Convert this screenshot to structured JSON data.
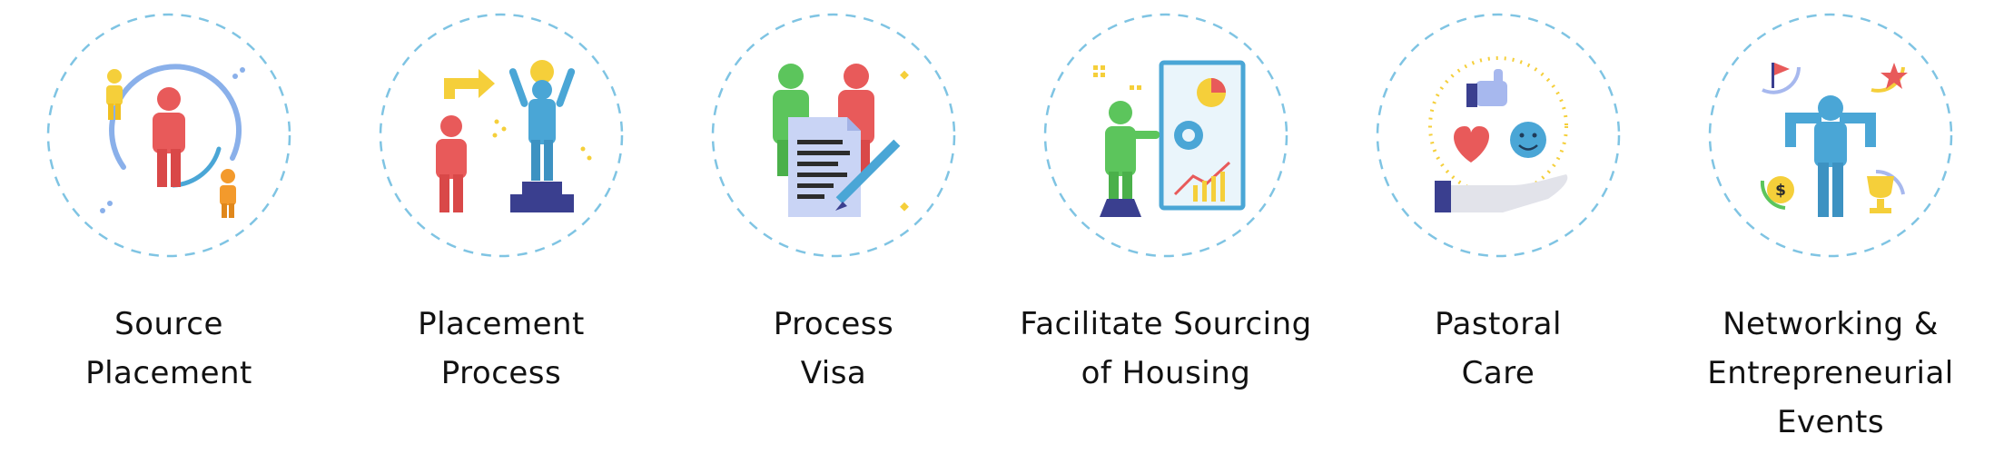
{
  "services": [
    {
      "icon": "source-placement-icon",
      "label_lines": [
        "Source",
        "Placement"
      ]
    },
    {
      "icon": "placement-process-icon",
      "label_lines": [
        "Placement",
        "Process"
      ]
    },
    {
      "icon": "process-visa-icon",
      "label_lines": [
        "Process",
        "Visa"
      ]
    },
    {
      "icon": "housing-sourcing-icon",
      "label_lines": [
        "Facilitate Sourcing",
        "of Housing"
      ]
    },
    {
      "icon": "pastoral-care-icon",
      "label_lines": [
        "Pastoral",
        "Care"
      ]
    },
    {
      "icon": "networking-events-icon",
      "label_lines": [
        "Networking &",
        "Entrepreneurial",
        "Events"
      ]
    }
  ],
  "colors": {
    "circle_dash": "#7fc4e3",
    "red": "#e85a5a",
    "blue": "#4aa6d6",
    "green": "#5cc55c",
    "yellow": "#f5cf3a",
    "orange": "#f39a2c",
    "navy": "#3a3f8f",
    "paper": "#c9d4f5"
  }
}
